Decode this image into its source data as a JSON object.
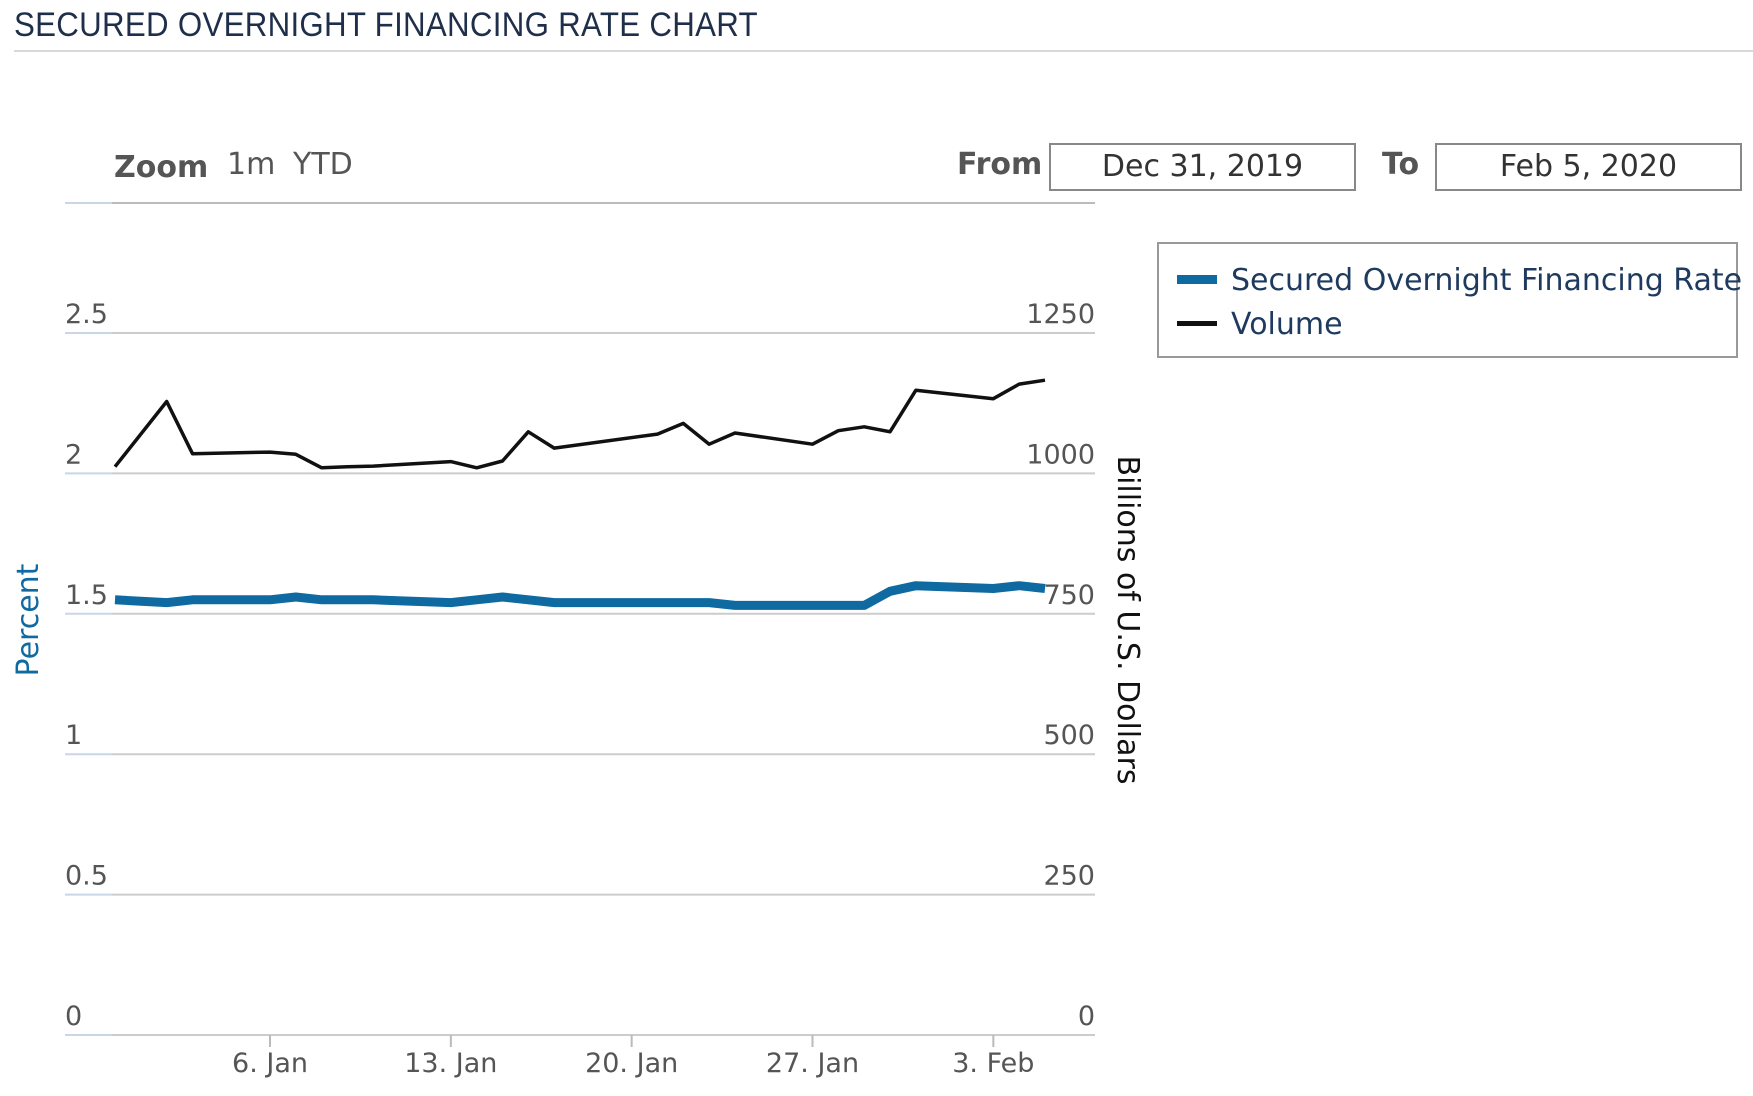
{
  "page_title": "SECURED OVERNIGHT FINANCING RATE CHART",
  "toolbar": {
    "zoom_label": "Zoom",
    "zoom_options": [
      "1m",
      "YTD"
    ],
    "from_label": "From",
    "from_value": "Dec 31, 2019",
    "to_label": "To",
    "to_value": "Feb 5, 2020"
  },
  "colors": {
    "rate": "#0e6aa0",
    "volume": "#111111",
    "grid": "#cccccc",
    "left_axis_title": "#0e6aa0"
  },
  "chart_data": {
    "type": "line",
    "x": [
      "2019-12-31",
      "2020-01-02",
      "2020-01-03",
      "2020-01-06",
      "2020-01-07",
      "2020-01-08",
      "2020-01-09",
      "2020-01-10",
      "2020-01-13",
      "2020-01-14",
      "2020-01-15",
      "2020-01-16",
      "2020-01-17",
      "2020-01-21",
      "2020-01-22",
      "2020-01-23",
      "2020-01-24",
      "2020-01-27",
      "2020-01-28",
      "2020-01-29",
      "2020-01-30",
      "2020-01-31",
      "2020-02-03",
      "2020-02-04",
      "2020-02-05"
    ],
    "series": [
      {
        "name": "Secured Overnight Financing Rate",
        "axis": "left",
        "values": [
          1.55,
          1.54,
          1.55,
          1.55,
          1.56,
          1.55,
          1.55,
          1.55,
          1.54,
          1.55,
          1.56,
          1.55,
          1.54,
          1.54,
          1.54,
          1.54,
          1.53,
          1.53,
          1.53,
          1.53,
          1.58,
          1.6,
          1.59,
          1.6,
          1.59
        ]
      },
      {
        "name": "Volume",
        "axis": "right",
        "values": [
          1012,
          1128,
          1035,
          1038,
          1034,
          1010,
          1012,
          1013,
          1021,
          1010,
          1022,
          1074,
          1045,
          1070,
          1089,
          1052,
          1072,
          1052,
          1076,
          1083,
          1074,
          1148,
          1133,
          1159,
          1166
        ]
      }
    ],
    "x_ticks": [
      "6. Jan",
      "13. Jan",
      "20. Jan",
      "27. Jan",
      "3. Feb"
    ],
    "x_tick_dates": [
      "2020-01-06",
      "2020-01-13",
      "2020-01-20",
      "2020-01-27",
      "2020-02-03"
    ],
    "y_left": {
      "label": "Percent",
      "ticks": [
        "0",
        "0.5",
        "1",
        "1.5",
        "2",
        "2.5"
      ],
      "min": 0,
      "max": 2.5
    },
    "y_right": {
      "label": "Billions of U.S. Dollars",
      "ticks": [
        "0",
        "250",
        "500",
        "750",
        "1000",
        "1250"
      ],
      "min": 0,
      "max": 1250
    },
    "grid": true,
    "legend_position": "top-right"
  }
}
